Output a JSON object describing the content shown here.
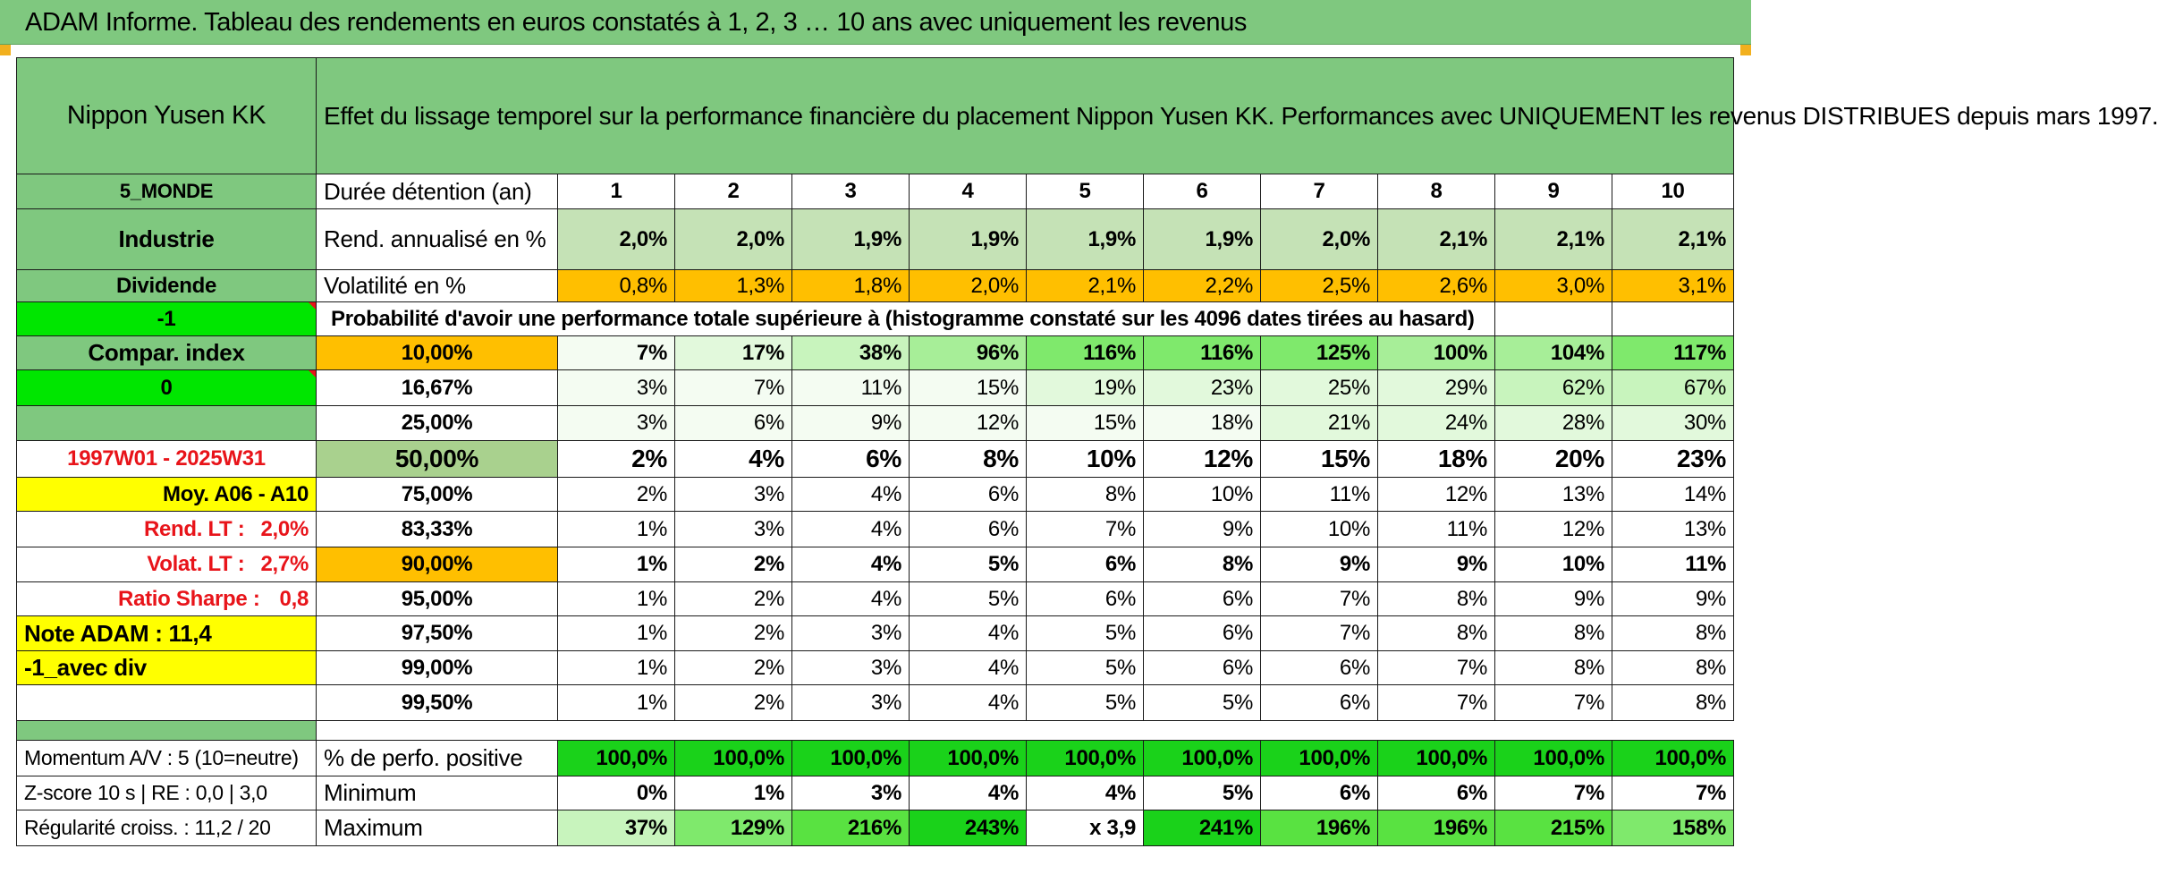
{
  "title": "ADAM Informe. Tableau des rendements en euros constatés à 1, 2, 3 … 10 ans avec uniquement les revenus",
  "company": "Nippon Yusen KK",
  "description": "Effet du lissage temporel sur la performance financière du placement Nippon Yusen KK. Performances avec UNIQUEMENT les revenus DISTRIBUES depuis mars 1997.",
  "side": {
    "region": "5_MONDE",
    "sector": "Industrie",
    "type": "Dividende",
    "minus_one": "-1",
    "compar_index": "Compar. index",
    "zero": "0",
    "period": "1997W01 - 2025W31",
    "moy": "Moy. A06 - A10",
    "rend_lt_label": "Rend. LT :",
    "rend_lt_value": "2,0%",
    "volat_lt_label": "Volat. LT :",
    "volat_lt_value": "2,7%",
    "sharpe_label": "Ratio Sharpe :",
    "sharpe_value": "0,8",
    "note_adam": "Note ADAM : 11,4",
    "avec_div": "-1_avec div",
    "momentum": "Momentum A/V : 5 (10=neutre)",
    "zscore": "Z-score 10 s | RE : 0,0 | 3,0",
    "regularite": "Régularité croiss. : 11,2 / 20"
  },
  "labels": {
    "duree": "Durée détention (an)",
    "rend": "Rend. annualisé en %",
    "vol": "Volatilité en %",
    "proba": "Probabilité d'avoir une performance totale supérieure à (histogramme constaté sur les 4096 dates tirées au hasard)",
    "pct_pos": "% de perfo. positive",
    "minimum": "Minimum",
    "maximum": "Maximum"
  },
  "years": [
    "1",
    "2",
    "3",
    "4",
    "5",
    "6",
    "7",
    "8",
    "9",
    "10"
  ],
  "rend": [
    "2,0%",
    "2,0%",
    "1,9%",
    "1,9%",
    "1,9%",
    "1,9%",
    "2,0%",
    "2,1%",
    "2,1%",
    "2,1%"
  ],
  "vol": [
    "0,8%",
    "1,3%",
    "1,8%",
    "2,0%",
    "2,1%",
    "2,2%",
    "2,5%",
    "2,6%",
    "3,0%",
    "3,1%"
  ],
  "prob_rows": [
    {
      "p": "10,00%",
      "v": [
        "7%",
        "17%",
        "38%",
        "96%",
        "116%",
        "116%",
        "125%",
        "100%",
        "104%",
        "117%"
      ]
    },
    {
      "p": "16,67%",
      "v": [
        "3%",
        "7%",
        "11%",
        "15%",
        "19%",
        "23%",
        "25%",
        "29%",
        "62%",
        "67%"
      ]
    },
    {
      "p": "25,00%",
      "v": [
        "3%",
        "6%",
        "9%",
        "12%",
        "15%",
        "18%",
        "21%",
        "24%",
        "28%",
        "30%"
      ]
    },
    {
      "p": "50,00%",
      "v": [
        "2%",
        "4%",
        "6%",
        "8%",
        "10%",
        "12%",
        "15%",
        "18%",
        "20%",
        "23%"
      ]
    },
    {
      "p": "75,00%",
      "v": [
        "2%",
        "3%",
        "4%",
        "6%",
        "8%",
        "10%",
        "11%",
        "12%",
        "13%",
        "14%"
      ]
    },
    {
      "p": "83,33%",
      "v": [
        "1%",
        "3%",
        "4%",
        "6%",
        "7%",
        "9%",
        "10%",
        "11%",
        "12%",
        "13%"
      ]
    },
    {
      "p": "90,00%",
      "v": [
        "1%",
        "2%",
        "4%",
        "5%",
        "6%",
        "8%",
        "9%",
        "9%",
        "10%",
        "11%"
      ]
    },
    {
      "p": "95,00%",
      "v": [
        "1%",
        "2%",
        "4%",
        "5%",
        "6%",
        "6%",
        "7%",
        "8%",
        "9%",
        "9%"
      ]
    },
    {
      "p": "97,50%",
      "v": [
        "1%",
        "2%",
        "3%",
        "4%",
        "5%",
        "6%",
        "7%",
        "8%",
        "8%",
        "8%"
      ]
    },
    {
      "p": "99,00%",
      "v": [
        "1%",
        "2%",
        "3%",
        "4%",
        "5%",
        "6%",
        "6%",
        "7%",
        "8%",
        "8%"
      ]
    },
    {
      "p": "99,50%",
      "v": [
        "1%",
        "2%",
        "3%",
        "4%",
        "5%",
        "5%",
        "6%",
        "7%",
        "7%",
        "8%"
      ]
    }
  ],
  "pct_pos": [
    "100,0%",
    "100,0%",
    "100,0%",
    "100,0%",
    "100,0%",
    "100,0%",
    "100,0%",
    "100,0%",
    "100,0%",
    "100,0%"
  ],
  "minimum": [
    "0%",
    "1%",
    "3%",
    "4%",
    "4%",
    "5%",
    "6%",
    "6%",
    "7%",
    "7%"
  ],
  "maximum": [
    "37%",
    "129%",
    "216%",
    "243%",
    "x 3,9",
    "241%",
    "196%",
    "196%",
    "215%",
    "158%"
  ],
  "colors": {
    "header_green": "#7fc87f",
    "lime": "#00e600",
    "yellow": "#ffff00",
    "orange": "#ffbf00",
    "red_text": "#e8141a"
  }
}
